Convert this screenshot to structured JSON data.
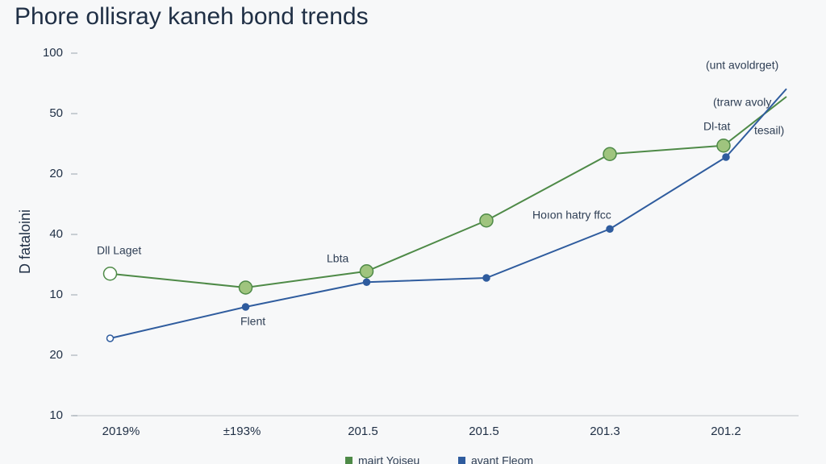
{
  "chart_data": {
    "type": "line",
    "title": "Phore ollisray kaneh bond trends",
    "ylabel": "D fataloini",
    "categories": [
      "2019%",
      "±193%",
      "201.5",
      "201.5",
      "201.3",
      "201.2"
    ],
    "xlim": [
      -0.4,
      5.6
    ],
    "ylim": [
      0,
      6.6
    ],
    "yticks": [
      {
        "value": 6,
        "label": "100"
      },
      {
        "value": 5,
        "label": "50"
      },
      {
        "value": 4,
        "label": "20"
      },
      {
        "value": 3,
        "label": "40"
      },
      {
        "value": 2,
        "label": "10"
      },
      {
        "value": 1,
        "label": "20"
      },
      {
        "value": 0,
        "label": "10"
      }
    ],
    "series": [
      {
        "name": "mairt Yoiseu",
        "color": "#4e8a47",
        "marker_color": "#9fc47e",
        "x": [
          -0.09,
          1.03,
          2.03,
          3.02,
          4.04,
          4.98,
          5.5
        ],
        "values": [
          2.35,
          2.12,
          2.39,
          3.23,
          4.33,
          4.47,
          5.28
        ]
      },
      {
        "name": "avant Fleom",
        "color": "#2f5c9e",
        "marker_color": "#2f5c9e",
        "x": [
          -0.09,
          1.03,
          2.03,
          3.02,
          4.04,
          5.0,
          5.5
        ],
        "values": [
          1.28,
          1.8,
          2.21,
          2.28,
          3.09,
          4.28,
          5.41
        ]
      }
    ],
    "annotations": [
      "Dll Laget",
      "Lbta",
      "Hoıon hatry ffcc",
      "Dl-tat",
      "(unt avoldrget)",
      "(trarw avoly",
      "tesail)",
      "Flent"
    ]
  }
}
